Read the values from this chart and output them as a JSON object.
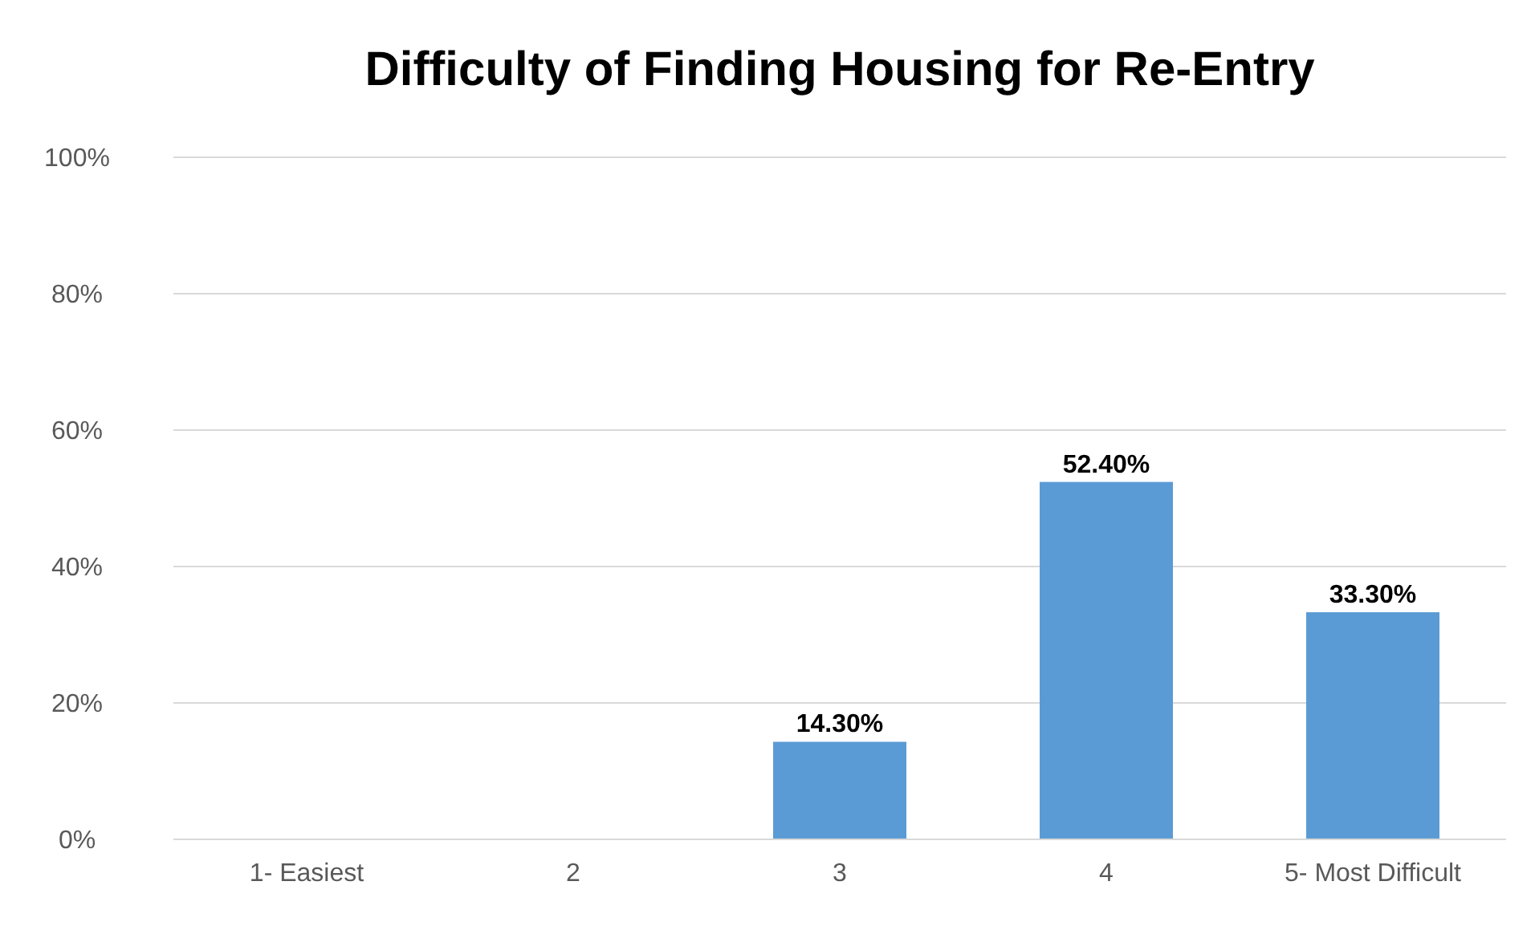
{
  "chart_data": {
    "type": "bar",
    "title": "Difficulty of Finding Housing for Re-Entry",
    "categories": [
      "1- Easiest",
      "2",
      "3",
      "4",
      "5- Most Difficult"
    ],
    "values": [
      0,
      0,
      14.3,
      52.4,
      33.3
    ],
    "value_labels": [
      null,
      null,
      "14.30%",
      "52.40%",
      "33.30%"
    ],
    "color": "#5b9bd5",
    "ylim": [
      0,
      100
    ],
    "yticks": [
      {
        "value": 0,
        "label": "0%"
      },
      {
        "value": 20,
        "label": "20%"
      },
      {
        "value": 40,
        "label": "40%"
      },
      {
        "value": 60,
        "label": "60%"
      },
      {
        "value": 80,
        "label": "80%"
      },
      {
        "value": 100,
        "label": "100%"
      }
    ],
    "grid": "y"
  }
}
